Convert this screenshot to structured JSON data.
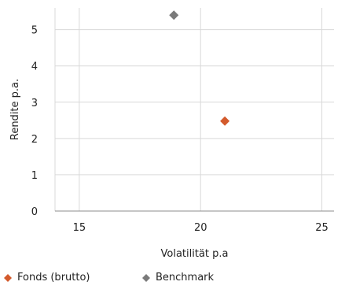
{
  "chart_data": {
    "type": "scatter",
    "title": "",
    "xlabel": "Volatilität p.a",
    "ylabel": "Rendite p.a.",
    "xlim": [
      14,
      25.5
    ],
    "ylim": [
      0,
      5.6
    ],
    "xticks": [
      15,
      20,
      25
    ],
    "yticks": [
      0,
      1,
      2,
      3,
      4,
      5
    ],
    "grid": true,
    "legend_position": "bottom-left",
    "series": [
      {
        "name": "Fonds (brutto)",
        "color": "#d35a2c",
        "marker": "diamond",
        "points": [
          {
            "x": 21.0,
            "y": 2.48
          }
        ]
      },
      {
        "name": "Benchmark",
        "color": "#7a7a7a",
        "marker": "diamond",
        "points": [
          {
            "x": 18.9,
            "y": 5.4
          }
        ]
      }
    ]
  }
}
